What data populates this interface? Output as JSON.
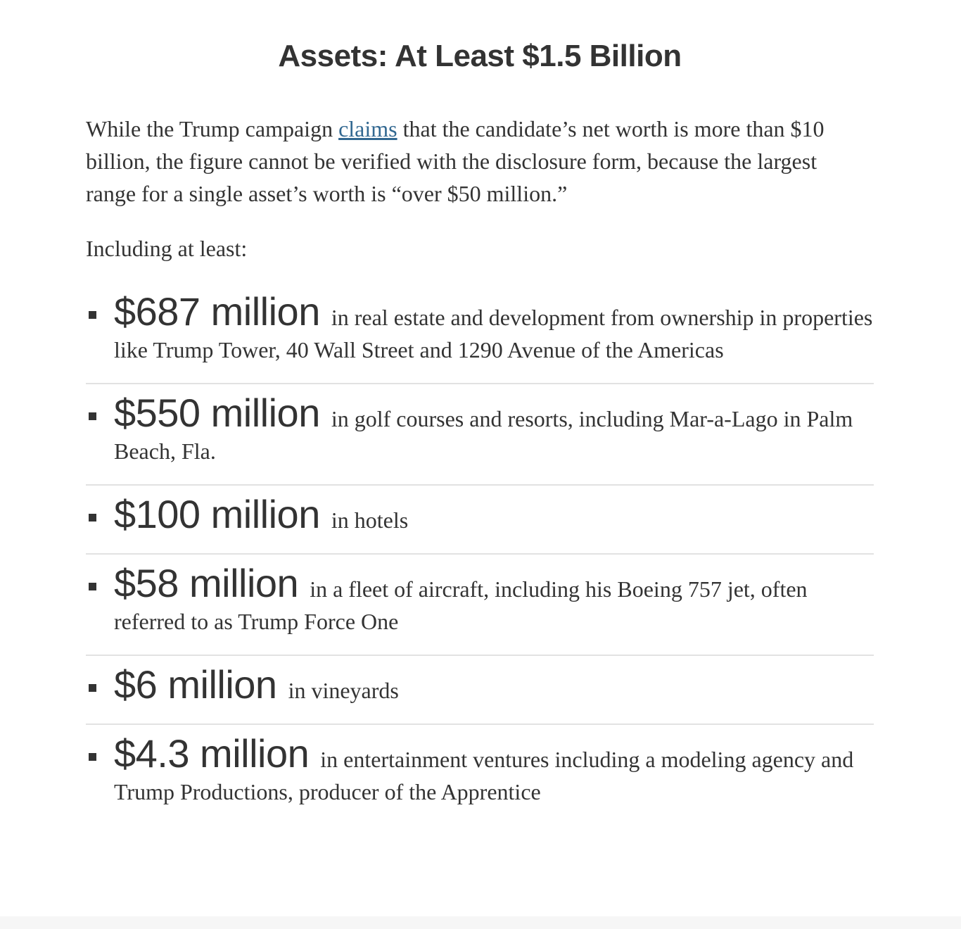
{
  "title": "Assets: At Least $1.5 Billion",
  "intro": {
    "before_link": "While the Trump campaign ",
    "link_text": "claims",
    "after_link": " that the candidate’s net worth is more than $10 billion, the figure cannot be verified with the disclosure form, because the largest range for a single asset’s worth is “over $50 million.”"
  },
  "lead": "Including at least:",
  "assets": [
    {
      "amount": "$687 million",
      "description": "in real estate and development from ownership in properties like Trump Tower, 40 Wall Street and 1290 Avenue of the Americas"
    },
    {
      "amount": "$550 million",
      "description": "in golf courses and resorts, including Mar-a-Lago in Palm Beach, Fla."
    },
    {
      "amount": "$100 million",
      "description": "in hotels"
    },
    {
      "amount": "$58 million",
      "description": "in a fleet of aircraft, including his Boeing 757 jet, often referred to as Trump Force One"
    },
    {
      "amount": "$6 million",
      "description": "in vineyards"
    },
    {
      "amount": "$4.3 million",
      "description": "in entertainment ventures including a modeling agency and Trump Productions, producer of the Apprentice"
    }
  ],
  "colors": {
    "text": "#333333",
    "link": "#326891",
    "divider": "#e2e2e2"
  }
}
